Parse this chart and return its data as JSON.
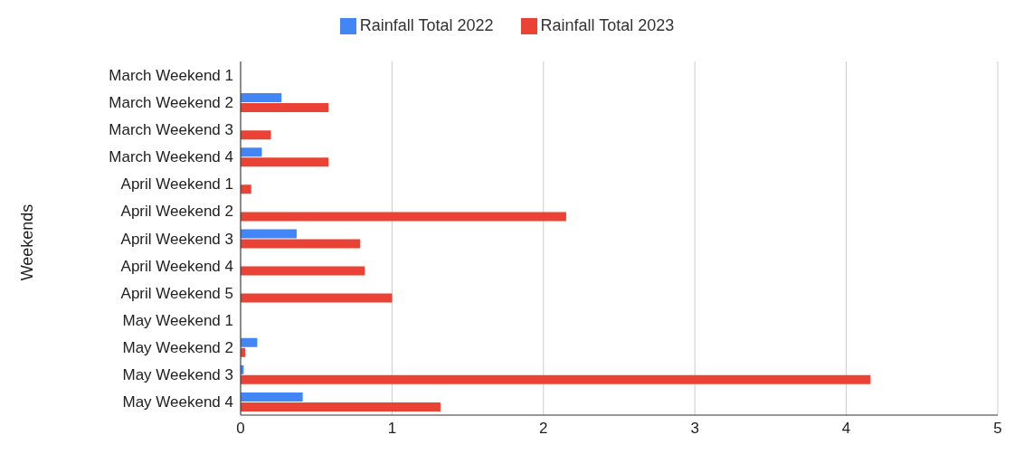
{
  "chart_data": {
    "type": "bar",
    "orientation": "horizontal",
    "ylabel": "Weekends",
    "categories": [
      "March Weekend 1",
      "March Weekend 2",
      "March Weekend 3",
      "March Weekend 4",
      "April Weekend 1",
      "April Weekend 2",
      "April Weekend 3",
      "April Weekend 4",
      "April Weekend 5",
      "May Weekend 1",
      "May Weekend 2",
      "May Weekend 3",
      "May Weekend 4"
    ],
    "series": [
      {
        "name": "Rainfall Total 2022",
        "color": "#4285f4",
        "values": [
          0,
          0.27,
          0,
          0.14,
          0,
          0,
          0.37,
          0,
          0,
          0,
          0.11,
          0.02,
          0.41
        ]
      },
      {
        "name": "Rainfall Total 2023",
        "color": "#ea4335",
        "values": [
          0,
          0.58,
          0.2,
          0.58,
          0.07,
          2.15,
          0.79,
          0.82,
          1.0,
          0,
          0.03,
          4.16,
          1.32
        ]
      }
    ],
    "xlim": [
      0,
      5
    ],
    "xticks": [
      0,
      1,
      2,
      3,
      4,
      5
    ],
    "grid": "x",
    "legend": "top"
  }
}
